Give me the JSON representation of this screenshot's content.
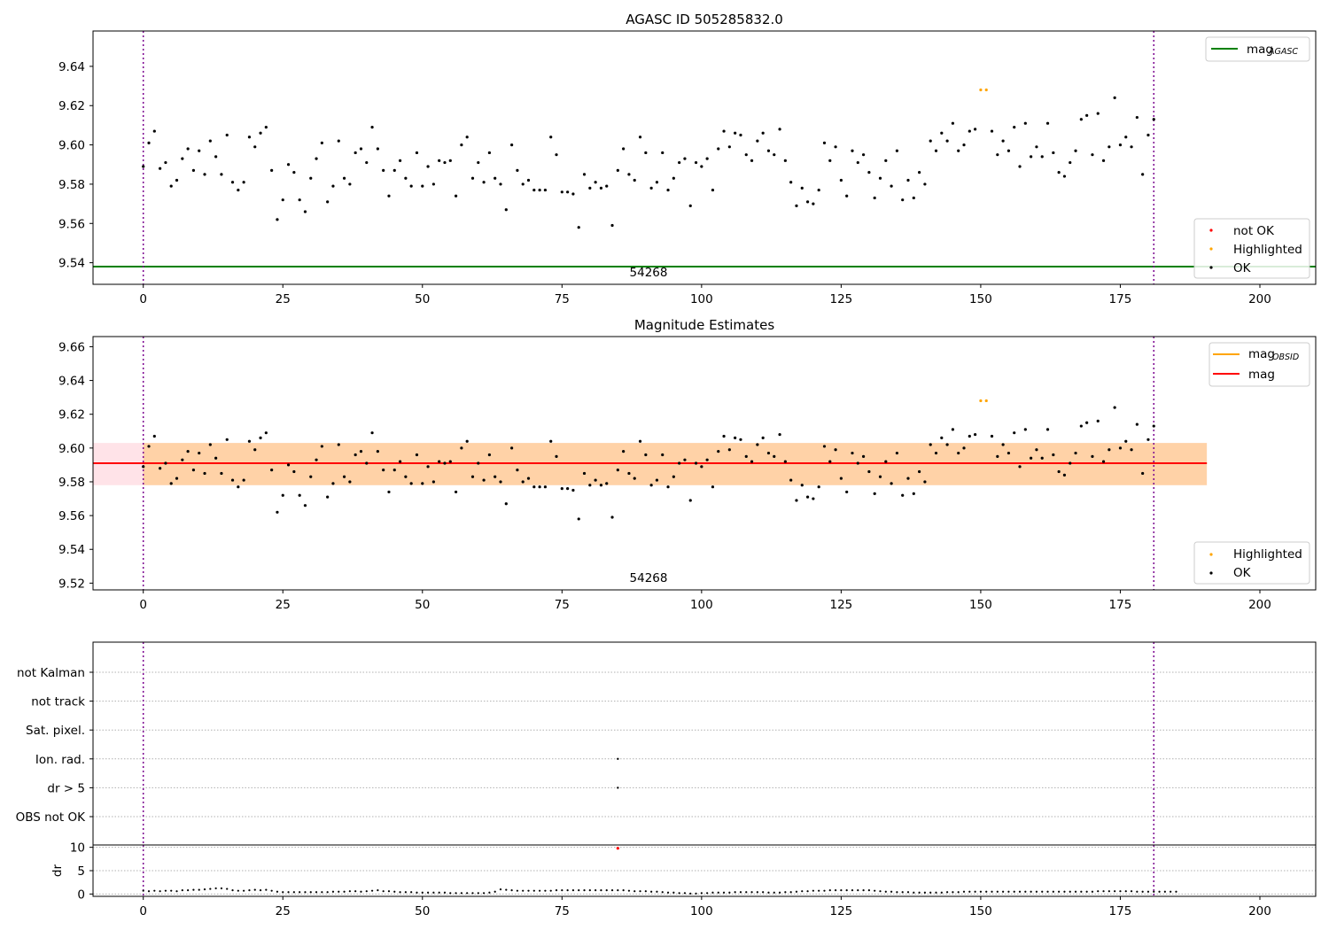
{
  "chart_data": [
    {
      "type": "scatter",
      "title": "AGASC ID 505285832.0",
      "annotation": "54268",
      "xlim": [
        -9,
        210
      ],
      "ylim": [
        9.529,
        9.658
      ],
      "xticks": [
        0,
        25,
        50,
        75,
        100,
        125,
        150,
        175,
        200
      ],
      "yticks": [
        9.54,
        9.56,
        9.58,
        9.6,
        9.62,
        9.64
      ],
      "vlines": [
        0,
        181
      ],
      "hlines": [
        {
          "name": "mag_AGASC",
          "y": 9.538,
          "color": "#008000"
        }
      ],
      "legend_lines": [
        {
          "label": "mag",
          "sub": "AGASC",
          "color": "#008000"
        }
      ],
      "legend_markers": [
        {
          "label": "not OK",
          "color": "#ff0000"
        },
        {
          "label": "Highlighted",
          "color": "#ffa500"
        },
        {
          "label": "OK",
          "color": "#000000"
        }
      ],
      "series": [
        {
          "name": "OK",
          "color": "#000000",
          "x_start": 0,
          "y": [
            9.589,
            9.601,
            9.607,
            9.588,
            9.591,
            9.579,
            9.582,
            9.593,
            9.598,
            9.587,
            9.597,
            9.585,
            9.602,
            9.594,
            9.585,
            9.605,
            9.581,
            9.577,
            9.581,
            9.604,
            9.599,
            9.606,
            9.609,
            9.587,
            9.562,
            9.572,
            9.59,
            9.586,
            9.572,
            9.566,
            9.583,
            9.593,
            9.601,
            9.571,
            9.579,
            9.602,
            9.583,
            9.58,
            9.596,
            9.598,
            9.591,
            9.609,
            9.598,
            9.587,
            9.574,
            9.587,
            9.592,
            9.583,
            9.579,
            9.596,
            9.579,
            9.589,
            9.58,
            9.592,
            9.591,
            9.592,
            9.574,
            9.6,
            9.604,
            9.583,
            9.591,
            9.581,
            9.596,
            9.583,
            9.58,
            9.567,
            9.6,
            9.587,
            9.58,
            9.582,
            9.577,
            9.577,
            9.577,
            9.604,
            9.595,
            9.576,
            9.576,
            9.575,
            9.558,
            9.585,
            9.578,
            9.581,
            9.578,
            9.579,
            9.559,
            9.587,
            9.598,
            9.585,
            9.582,
            9.604,
            9.596,
            9.578,
            9.581,
            9.596,
            9.577,
            9.583,
            9.591,
            9.593,
            9.569,
            9.591,
            9.589,
            9.593,
            9.577,
            9.598,
            9.607,
            9.599,
            9.606,
            9.605,
            9.595,
            9.592,
            9.602,
            9.606,
            9.597,
            9.595,
            9.608,
            9.592,
            9.581,
            9.569,
            9.578,
            9.571,
            9.57,
            9.577,
            9.601,
            9.592,
            9.599,
            9.582,
            9.574,
            9.597,
            9.591,
            9.595,
            9.586,
            9.573,
            9.583,
            9.592,
            9.579,
            9.597,
            9.572,
            9.582,
            9.573,
            9.586,
            9.58,
            9.602,
            9.597,
            9.606,
            9.602,
            9.611,
            9.597,
            9.6,
            9.607,
            9.608,
            9.628,
            9.628,
            9.607,
            9.595,
            9.602,
            9.597,
            9.609,
            9.589,
            9.611,
            9.594,
            9.599,
            9.594,
            9.611,
            9.596,
            9.586,
            9.584,
            9.591,
            9.597,
            9.613,
            9.615,
            9.595,
            9.616,
            9.592,
            9.599,
            9.624,
            9.6,
            9.604,
            9.599,
            9.614,
            9.585,
            9.605,
            9.613
          ]
        },
        {
          "name": "Highlighted",
          "color": "#ffa500",
          "x": [
            150,
            151
          ],
          "y": [
            9.628,
            9.628
          ]
        }
      ]
    },
    {
      "type": "scatter",
      "title": "Magnitude Estimates",
      "annotation": "54268",
      "xlim": [
        -9,
        210
      ],
      "ylim": [
        9.516,
        9.666
      ],
      "xticks": [
        0,
        25,
        50,
        75,
        100,
        125,
        150,
        175,
        200
      ],
      "yticks": [
        9.52,
        9.54,
        9.56,
        9.58,
        9.6,
        9.62,
        9.64,
        9.66
      ],
      "vlines": [
        0,
        181
      ],
      "bands": [
        {
          "name": "mag range",
          "x": [
            -9,
            190.5
          ],
          "y": [
            9.578,
            9.603
          ],
          "color": "#ffc0cb"
        },
        {
          "name": "mag_OBSID range",
          "x": [
            0,
            190.5
          ],
          "y": [
            9.578,
            9.603
          ],
          "color": "#ffa500"
        }
      ],
      "hlines": [
        {
          "name": "mag_OBSID",
          "y": 9.591,
          "x": [
            0,
            190.5
          ],
          "color": "#ffa500"
        },
        {
          "name": "mag",
          "y": 9.591,
          "x": [
            -9,
            190.5
          ],
          "color": "#ff0000"
        }
      ],
      "legend_lines": [
        {
          "label": "mag",
          "sub": "OBSID",
          "color": "#ffa500"
        },
        {
          "label": "mag",
          "sub": "",
          "color": "#ff0000"
        }
      ],
      "legend_markers": [
        {
          "label": "Highlighted",
          "color": "#ffa500"
        },
        {
          "label": "OK",
          "color": "#000000"
        }
      ],
      "series_ref": "same points as panel 1"
    },
    {
      "type": "scatter",
      "title": "",
      "xlim": [
        -9,
        210
      ],
      "xticks": [
        0,
        25,
        50,
        75,
        100,
        125,
        150,
        175,
        200
      ],
      "vlines": [
        0,
        181
      ],
      "flag_rows": [
        "not Kalman",
        "not track",
        "Sat. pixel.",
        "Ion. rad.",
        "dr > 5",
        "OBS not OK"
      ],
      "flags": [
        {
          "row": "Ion. rad.",
          "x": 85
        },
        {
          "row": "dr > 5",
          "x": 85
        }
      ],
      "dr_axis": {
        "ylabel": "dr",
        "yticks": [
          0,
          5,
          10
        ],
        "ylim": [
          -0.5,
          10.5
        ]
      },
      "dr_outlier": {
        "x": 85,
        "y": 9.8,
        "color": "#ff0000"
      },
      "dr_values": [
        0.7,
        0.6,
        0.7,
        0.6,
        0.7,
        0.7,
        0.6,
        0.8,
        0.8,
        0.9,
        0.9,
        1.0,
        1.1,
        1.2,
        1.2,
        1.1,
        0.8,
        0.7,
        0.7,
        0.8,
        0.9,
        0.8,
        0.9,
        0.7,
        0.5,
        0.4,
        0.4,
        0.4,
        0.4,
        0.4,
        0.4,
        0.4,
        0.4,
        0.4,
        0.5,
        0.5,
        0.5,
        0.6,
        0.6,
        0.5,
        0.6,
        0.7,
        0.8,
        0.6,
        0.6,
        0.5,
        0.4,
        0.4,
        0.4,
        0.3,
        0.3,
        0.3,
        0.3,
        0.3,
        0.3,
        0.2,
        0.2,
        0.2,
        0.2,
        0.2,
        0.2,
        0.2,
        0.3,
        0.5,
        1.0,
        0.9,
        0.8,
        0.7,
        0.7,
        0.7,
        0.7,
        0.7,
        0.7,
        0.7,
        0.8,
        0.8,
        0.8,
        0.8,
        0.8,
        0.8,
        0.8,
        0.8,
        0.8,
        0.8,
        0.8,
        0.8,
        0.8,
        0.7,
        0.6,
        0.6,
        0.6,
        0.5,
        0.5,
        0.4,
        0.3,
        0.3,
        0.2,
        0.2,
        0.1,
        0.1,
        0.2,
        0.2,
        0.3,
        0.3,
        0.3,
        0.3,
        0.4,
        0.4,
        0.4,
        0.4,
        0.4,
        0.4,
        0.3,
        0.3,
        0.3,
        0.4,
        0.4,
        0.5,
        0.6,
        0.6,
        0.7,
        0.7,
        0.7,
        0.8,
        0.8,
        0.8,
        0.8,
        0.8,
        0.8,
        0.8,
        0.8,
        0.7,
        0.6,
        0.5,
        0.5,
        0.4,
        0.4,
        0.4,
        0.3,
        0.3,
        0.3,
        0.3,
        0.3,
        0.3,
        0.4,
        0.4,
        0.4,
        0.5,
        0.5,
        0.5,
        0.5,
        0.5,
        0.5,
        0.5,
        0.5,
        0.5,
        0.5,
        0.5,
        0.5,
        0.5,
        0.5,
        0.5,
        0.5,
        0.5,
        0.5,
        0.5,
        0.5,
        0.5,
        0.5,
        0.5,
        0.5,
        0.6,
        0.6,
        0.6,
        0.6,
        0.6,
        0.6,
        0.6,
        0.5,
        0.5,
        0.5,
        0.5,
        0.5,
        0.5,
        0.5,
        0.5
      ]
    }
  ]
}
